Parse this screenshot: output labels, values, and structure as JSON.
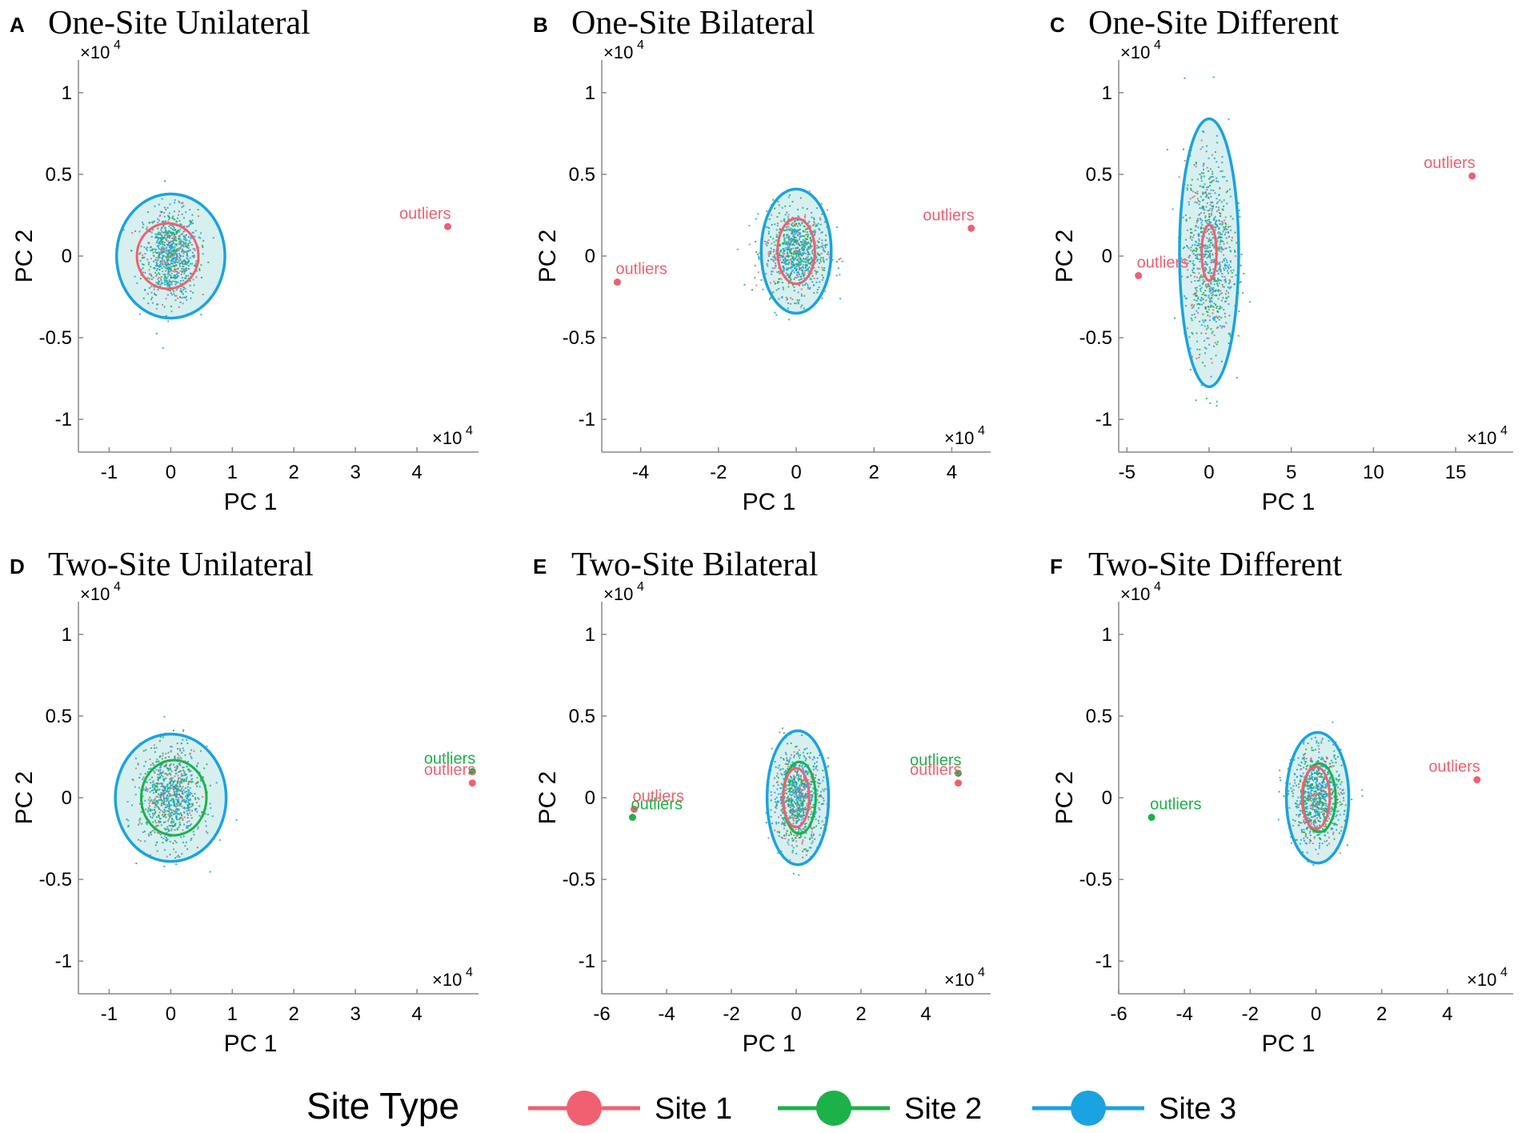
{
  "colors": {
    "site1": "#f06070",
    "site2": "#1db14a",
    "site3": "#1aa3e0",
    "site3_fill": "#d8efef"
  },
  "legend": {
    "title": "Site Type",
    "items": [
      {
        "label": "Site 1",
        "color": "#f06070"
      },
      {
        "label": "Site 2",
        "color": "#1db14a"
      },
      {
        "label": "Site 3",
        "color": "#1aa3e0"
      }
    ]
  },
  "chart_data": [
    {
      "type": "scatter",
      "letter": "A",
      "title": "One-Site Unilateral",
      "xlabel": "PC 1",
      "ylabel": "PC 2",
      "x_multiplier": "×10",
      "x_exponent": "4",
      "y_multiplier": "×10",
      "y_exponent": "4",
      "xlim": [
        -1.5,
        5
      ],
      "ylim": [
        -1.2,
        1.2
      ],
      "xticks": [
        -1,
        0,
        1,
        2,
        3,
        4
      ],
      "xtick_labels": [
        "-1",
        "0",
        "1",
        "2",
        "3",
        "4"
      ],
      "yticks": [
        -1,
        -0.5,
        0,
        0.5,
        1
      ],
      "ytick_labels": [
        "-1",
        "-0.5",
        "0",
        "0.5",
        "1"
      ],
      "cloud": {
        "cx": 0,
        "cy": 0,
        "sx": 0.22,
        "sy": 0.14
      },
      "ellipses": [
        {
          "site": "site3",
          "cx": 0,
          "cy": 0,
          "rx": 0.88,
          "ry": 0.38,
          "filled": true
        },
        {
          "site": "site1",
          "cx": -0.05,
          "cy": 0,
          "rx": 0.5,
          "ry": 0.2,
          "filled": false
        }
      ],
      "outliers": [
        {
          "site": "site1",
          "label": "outliers",
          "x": 4.5,
          "y": 0.18
        }
      ]
    },
    {
      "type": "scatter",
      "letter": "B",
      "title": "One-Site Bilateral",
      "xlabel": "PC 1",
      "ylabel": "PC 2",
      "x_multiplier": "×10",
      "x_exponent": "4",
      "y_multiplier": "×10",
      "y_exponent": "4",
      "xlim": [
        -5,
        5
      ],
      "ylim": [
        -1.2,
        1.2
      ],
      "xticks": [
        -4,
        -2,
        0,
        2,
        4
      ],
      "xtick_labels": [
        "-4",
        "-2",
        "0",
        "2",
        "4"
      ],
      "yticks": [
        -1,
        -0.5,
        0,
        0.5,
        1
      ],
      "ytick_labels": [
        "-1",
        "-0.5",
        "0",
        "0.5",
        "1"
      ],
      "cloud": {
        "cx": 0,
        "cy": 0.02,
        "sx": 0.4,
        "sy": 0.13
      },
      "ellipses": [
        {
          "site": "site3",
          "cx": 0,
          "cy": 0.03,
          "rx": 0.9,
          "ry": 0.38,
          "filled": true
        },
        {
          "site": "site1",
          "cx": 0,
          "cy": 0.03,
          "rx": 0.48,
          "ry": 0.2,
          "filled": false
        }
      ],
      "outliers": [
        {
          "site": "site1",
          "label": "outliers",
          "x": -4.6,
          "y": -0.16
        },
        {
          "site": "site1",
          "label": "outliers",
          "x": 4.5,
          "y": 0.17
        }
      ]
    },
    {
      "type": "scatter",
      "letter": "C",
      "title": "One-Site Different",
      "xlabel": "PC 1",
      "ylabel": "PC 2",
      "x_multiplier": "×10",
      "x_exponent": "4",
      "y_multiplier": "×10",
      "y_exponent": "4",
      "xlim": [
        -5.5,
        18.5
      ],
      "ylim": [
        -1.2,
        1.2
      ],
      "xticks": [
        -5,
        0,
        5,
        10,
        15
      ],
      "xtick_labels": [
        "-5",
        "0",
        "5",
        "10",
        "15"
      ],
      "yticks": [
        -1,
        -0.5,
        0,
        0.5,
        1
      ],
      "ytick_labels": [
        "-1",
        "-0.5",
        "0",
        "0.5",
        "1"
      ],
      "cloud": {
        "cx": 0,
        "cy": 0.02,
        "sx": 0.75,
        "sy": 0.3
      },
      "ellipses": [
        {
          "site": "site3",
          "cx": 0,
          "cy": 0.02,
          "rx": 1.8,
          "ry": 0.82,
          "filled": true
        },
        {
          "site": "site1",
          "cx": 0,
          "cy": 0.02,
          "rx": 0.45,
          "ry": 0.17,
          "filled": false
        }
      ],
      "outliers": [
        {
          "site": "site1",
          "label": "outliers",
          "x": -4.3,
          "y": -0.12
        },
        {
          "site": "site1",
          "label": "outliers",
          "x": 16,
          "y": 0.49
        }
      ]
    },
    {
      "type": "scatter",
      "letter": "D",
      "title": "Two-Site Unilateral",
      "xlabel": "PC 1",
      "ylabel": "PC 2",
      "x_multiplier": "×10",
      "x_exponent": "4",
      "y_multiplier": "×10",
      "y_exponent": "4",
      "xlim": [
        -1.5,
        5
      ],
      "ylim": [
        -1.2,
        1.2
      ],
      "xticks": [
        -1,
        0,
        1,
        2,
        3,
        4
      ],
      "xtick_labels": [
        "-1",
        "0",
        "1",
        "2",
        "3",
        "4"
      ],
      "yticks": [
        -1,
        -0.5,
        0,
        0.5,
        1
      ],
      "ytick_labels": [
        "-1",
        "-0.5",
        "0",
        "0.5",
        "1"
      ],
      "cloud": {
        "cx": 0,
        "cy": 0,
        "sx": 0.25,
        "sy": 0.15
      },
      "ellipses": [
        {
          "site": "site3",
          "cx": 0,
          "cy": 0,
          "rx": 0.9,
          "ry": 0.39,
          "filled": true
        },
        {
          "site": "site2",
          "cx": 0.05,
          "cy": 0,
          "rx": 0.53,
          "ry": 0.23,
          "filled": false
        }
      ],
      "outliers": [
        {
          "site": "site2",
          "label": "outliers",
          "x": 4.9,
          "y": 0.16
        },
        {
          "site": "site1",
          "label": "outliers",
          "x": 4.9,
          "y": 0.09
        }
      ]
    },
    {
      "type": "scatter",
      "letter": "E",
      "title": "Two-Site Bilateral",
      "xlabel": "PC 1",
      "ylabel": "PC 2",
      "x_multiplier": "×10",
      "x_exponent": "4",
      "y_multiplier": "×10",
      "y_exponent": "4",
      "xlim": [
        -6,
        6
      ],
      "ylim": [
        -1.2,
        1.2
      ],
      "xticks": [
        -6,
        -4,
        -2,
        0,
        2,
        4
      ],
      "xtick_labels": [
        "-6",
        "-4",
        "-2",
        "0",
        "2",
        "4"
      ],
      "yticks": [
        -1,
        -0.5,
        0,
        0.5,
        1
      ],
      "ytick_labels": [
        "-1",
        "-0.5",
        "0",
        "0.5",
        "1"
      ],
      "cloud": {
        "cx": 0.05,
        "cy": 0,
        "sx": 0.38,
        "sy": 0.14
      },
      "ellipses": [
        {
          "site": "site3",
          "cx": 0.05,
          "cy": 0,
          "rx": 0.95,
          "ry": 0.41,
          "filled": true
        },
        {
          "site": "site2",
          "cx": 0.1,
          "cy": 0,
          "rx": 0.5,
          "ry": 0.22,
          "filled": false
        },
        {
          "site": "site1",
          "cx": 0,
          "cy": 0,
          "rx": 0.4,
          "ry": 0.18,
          "filled": false
        }
      ],
      "outliers": [
        {
          "site": "site1",
          "label": "outliers",
          "x": -5.0,
          "y": -0.07
        },
        {
          "site": "site2",
          "label": "outliers",
          "x": -5.05,
          "y": -0.12
        },
        {
          "site": "site2",
          "label": "outliers",
          "x": 5.0,
          "y": 0.15
        },
        {
          "site": "site1",
          "label": "outliers",
          "x": 5.0,
          "y": 0.09
        }
      ]
    },
    {
      "type": "scatter",
      "letter": "F",
      "title": "Two-Site Different",
      "xlabel": "PC 1",
      "ylabel": "PC 2",
      "x_multiplier": "×10",
      "x_exponent": "4",
      "y_multiplier": "×10",
      "y_exponent": "4",
      "xlim": [
        -6,
        6
      ],
      "ylim": [
        -1.2,
        1.2
      ],
      "xticks": [
        -6,
        -4,
        -2,
        0,
        2,
        4
      ],
      "xtick_labels": [
        "-6",
        "-4",
        "-2",
        "0",
        "2",
        "4"
      ],
      "yticks": [
        -1,
        -0.5,
        0,
        0.5,
        1
      ],
      "ytick_labels": [
        "-1",
        "-0.5",
        "0",
        "0.5",
        "1"
      ],
      "cloud": {
        "cx": 0.05,
        "cy": 0,
        "sx": 0.38,
        "sy": 0.14
      },
      "ellipses": [
        {
          "site": "site3",
          "cx": 0.05,
          "cy": 0,
          "rx": 0.95,
          "ry": 0.4,
          "filled": true
        },
        {
          "site": "site2",
          "cx": 0.1,
          "cy": 0,
          "rx": 0.5,
          "ry": 0.21,
          "filled": false
        },
        {
          "site": "site1",
          "cx": 0,
          "cy": 0,
          "rx": 0.42,
          "ry": 0.19,
          "filled": false
        }
      ],
      "outliers": [
        {
          "site": "site2",
          "label": "outliers",
          "x": -5.0,
          "y": -0.12
        },
        {
          "site": "site1",
          "label": "outliers",
          "x": 4.9,
          "y": 0.11
        }
      ]
    }
  ]
}
